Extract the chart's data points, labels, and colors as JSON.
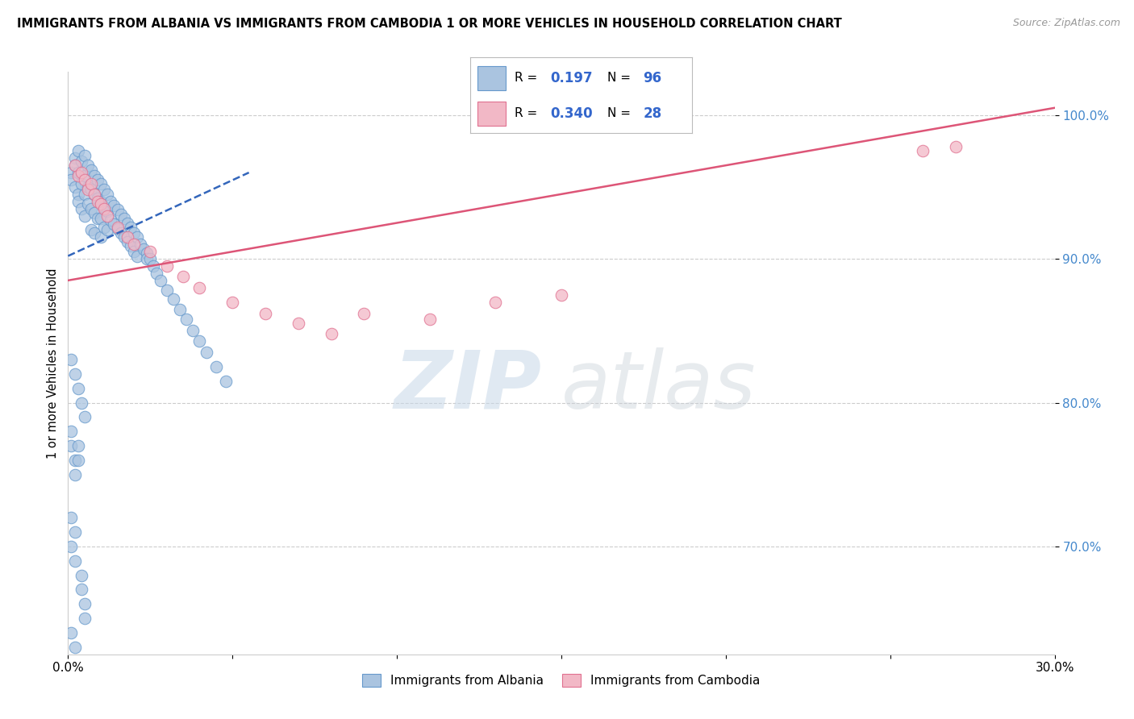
{
  "title": "IMMIGRANTS FROM ALBANIA VS IMMIGRANTS FROM CAMBODIA 1 OR MORE VEHICLES IN HOUSEHOLD CORRELATION CHART",
  "source": "Source: ZipAtlas.com",
  "ylabel": "1 or more Vehicles in Household",
  "x_min": 0.0,
  "x_max": 0.3,
  "y_min": 0.625,
  "y_max": 1.03,
  "y_ticks": [
    0.7,
    0.8,
    0.9,
    1.0
  ],
  "y_tick_labels": [
    "70.0%",
    "80.0%",
    "90.0%",
    "100.0%"
  ],
  "x_ticks": [
    0.0,
    0.05,
    0.1,
    0.15,
    0.2,
    0.25,
    0.3
  ],
  "x_tick_labels": [
    "0.0%",
    "",
    "",
    "",
    "",
    "",
    "30.0%"
  ],
  "albania_color": "#aac4e0",
  "cambodia_color": "#f2b8c6",
  "albania_edge": "#6699cc",
  "cambodia_edge": "#e07090",
  "trend_albania_color": "#3366bb",
  "trend_cambodia_color": "#dd5577",
  "R_albania": 0.197,
  "N_albania": 96,
  "R_cambodia": 0.34,
  "N_cambodia": 28,
  "watermark_zip": "ZIP",
  "watermark_atlas": "atlas",
  "legend_labels": [
    "Immigrants from Albania",
    "Immigrants from Cambodia"
  ],
  "alb_x": [
    0.001,
    0.001,
    0.002,
    0.002,
    0.002,
    0.003,
    0.003,
    0.003,
    0.003,
    0.004,
    0.004,
    0.004,
    0.005,
    0.005,
    0.005,
    0.005,
    0.006,
    0.006,
    0.006,
    0.007,
    0.007,
    0.007,
    0.007,
    0.008,
    0.008,
    0.008,
    0.008,
    0.009,
    0.009,
    0.009,
    0.01,
    0.01,
    0.01,
    0.01,
    0.011,
    0.011,
    0.011,
    0.012,
    0.012,
    0.012,
    0.013,
    0.013,
    0.014,
    0.014,
    0.015,
    0.015,
    0.016,
    0.016,
    0.017,
    0.017,
    0.018,
    0.018,
    0.019,
    0.019,
    0.02,
    0.02,
    0.021,
    0.021,
    0.022,
    0.023,
    0.024,
    0.024,
    0.025,
    0.026,
    0.027,
    0.028,
    0.03,
    0.032,
    0.034,
    0.036,
    0.038,
    0.04,
    0.042,
    0.045,
    0.048,
    0.001,
    0.002,
    0.003,
    0.004,
    0.005,
    0.001,
    0.001,
    0.002,
    0.002,
    0.003,
    0.003,
    0.004,
    0.004,
    0.005,
    0.005,
    0.001,
    0.002,
    0.001,
    0.002,
    0.001,
    0.002
  ],
  "alb_y": [
    0.96,
    0.955,
    0.97,
    0.965,
    0.95,
    0.975,
    0.96,
    0.945,
    0.94,
    0.968,
    0.952,
    0.935,
    0.972,
    0.958,
    0.945,
    0.93,
    0.965,
    0.95,
    0.938,
    0.962,
    0.948,
    0.935,
    0.92,
    0.958,
    0.945,
    0.932,
    0.918,
    0.955,
    0.942,
    0.928,
    0.952,
    0.94,
    0.928,
    0.915,
    0.948,
    0.936,
    0.922,
    0.945,
    0.933,
    0.92,
    0.94,
    0.927,
    0.937,
    0.924,
    0.934,
    0.921,
    0.931,
    0.918,
    0.928,
    0.915,
    0.925,
    0.912,
    0.922,
    0.909,
    0.918,
    0.905,
    0.915,
    0.902,
    0.91,
    0.907,
    0.904,
    0.9,
    0.9,
    0.895,
    0.89,
    0.885,
    0.878,
    0.872,
    0.865,
    0.858,
    0.85,
    0.843,
    0.835,
    0.825,
    0.815,
    0.83,
    0.82,
    0.81,
    0.8,
    0.79,
    0.78,
    0.77,
    0.76,
    0.75,
    0.77,
    0.76,
    0.68,
    0.67,
    0.66,
    0.65,
    0.64,
    0.63,
    0.72,
    0.71,
    0.7,
    0.69
  ],
  "cam_x": [
    0.002,
    0.003,
    0.004,
    0.005,
    0.006,
    0.007,
    0.008,
    0.009,
    0.01,
    0.011,
    0.012,
    0.015,
    0.018,
    0.02,
    0.025,
    0.03,
    0.035,
    0.04,
    0.05,
    0.06,
    0.07,
    0.08,
    0.09,
    0.11,
    0.13,
    0.15,
    0.26,
    0.27
  ],
  "cam_y": [
    0.965,
    0.958,
    0.96,
    0.955,
    0.948,
    0.952,
    0.945,
    0.94,
    0.938,
    0.935,
    0.93,
    0.922,
    0.915,
    0.91,
    0.905,
    0.895,
    0.888,
    0.88,
    0.87,
    0.862,
    0.855,
    0.848,
    0.862,
    0.858,
    0.87,
    0.875,
    0.975,
    0.978
  ],
  "trend_alb_x0": 0.0,
  "trend_alb_x1": 0.055,
  "trend_alb_y0": 0.902,
  "trend_alb_y1": 0.96,
  "trend_cam_x0": 0.0,
  "trend_cam_x1": 0.3,
  "trend_cam_y0": 0.885,
  "trend_cam_y1": 1.005
}
